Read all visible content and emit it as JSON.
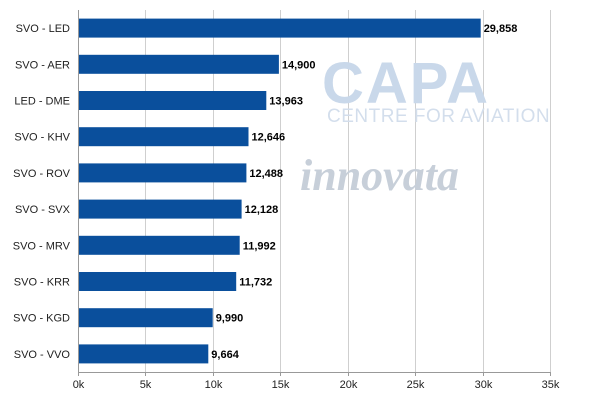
{
  "chart_data": {
    "type": "bar",
    "orientation": "horizontal",
    "categories": [
      "SVO - LED",
      "SVO - AER",
      "LED - DME",
      "SVO - KHV",
      "SVO - ROV",
      "SVO - SVX",
      "SVO - MRV",
      "SVO - KRR",
      "SVO - KGD",
      "SVO - VVO"
    ],
    "values": [
      29858,
      14900,
      13963,
      12646,
      12488,
      12128,
      11992,
      11732,
      9990,
      9664
    ],
    "value_labels": [
      "29,858",
      "14,900",
      "13,963",
      "12,646",
      "12,488",
      "12,128",
      "11,992",
      "11,732",
      "9,990",
      "9,664"
    ],
    "xlim": [
      0,
      35000
    ],
    "x_ticks": [
      0,
      5000,
      10000,
      15000,
      20000,
      25000,
      30000,
      35000
    ],
    "x_tick_labels": [
      "0k",
      "5k",
      "10k",
      "15k",
      "20k",
      "25k",
      "30k",
      "35k"
    ],
    "grid": "vertical",
    "bar_color": "#0a4f9c",
    "title": "",
    "xlabel": "",
    "ylabel": ""
  },
  "watermarks": {
    "capa_logo": "CAPA",
    "capa_subtitle": "CENTRE FOR AVIATION",
    "innovata_logo": "innovata"
  }
}
